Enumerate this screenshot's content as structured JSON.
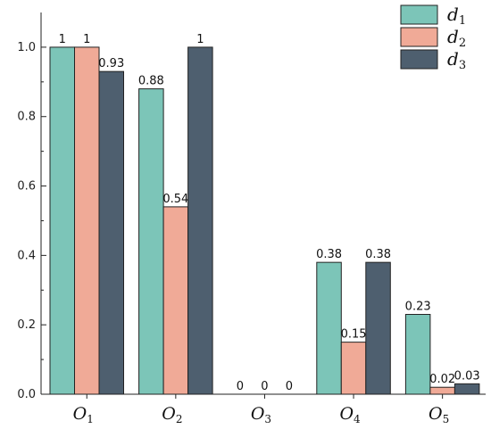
{
  "chart_data": {
    "type": "bar",
    "title": "",
    "xlabel": "",
    "ylabel": "",
    "ylim": [
      0,
      1.1
    ],
    "yticks": [
      0.0,
      0.2,
      0.4,
      0.6,
      0.8,
      1.0
    ],
    "ytick_labels": [
      "0.0",
      "0.2",
      "0.4",
      "0.6",
      "0.8",
      "1.0"
    ],
    "grid": false,
    "legend_position": "top-right",
    "categories": [
      {
        "base": "O",
        "sub": "1"
      },
      {
        "base": "O",
        "sub": "2"
      },
      {
        "base": "O",
        "sub": "3"
      },
      {
        "base": "O",
        "sub": "4"
      },
      {
        "base": "O",
        "sub": "5"
      }
    ],
    "series": [
      {
        "name": {
          "base": "d",
          "sub": "1"
        },
        "color": "#7cc5b8",
        "values": [
          1,
          0.88,
          0,
          0.38,
          0.23
        ],
        "labels": [
          "1",
          "0.88",
          "0",
          "0.38",
          "0.23"
        ]
      },
      {
        "name": {
          "base": "d",
          "sub": "2"
        },
        "color": "#f0aa97",
        "values": [
          1,
          0.54,
          0,
          0.15,
          0.02
        ],
        "labels": [
          "1",
          "0.54",
          "0",
          "0.15",
          "0.02"
        ]
      },
      {
        "name": {
          "base": "d",
          "sub": "3"
        },
        "color": "#4e5f6f",
        "values": [
          0.93,
          1,
          0,
          0.38,
          0.03
        ],
        "labels": [
          "0.93",
          "1",
          "0",
          "0.38",
          "0.03"
        ]
      }
    ]
  }
}
